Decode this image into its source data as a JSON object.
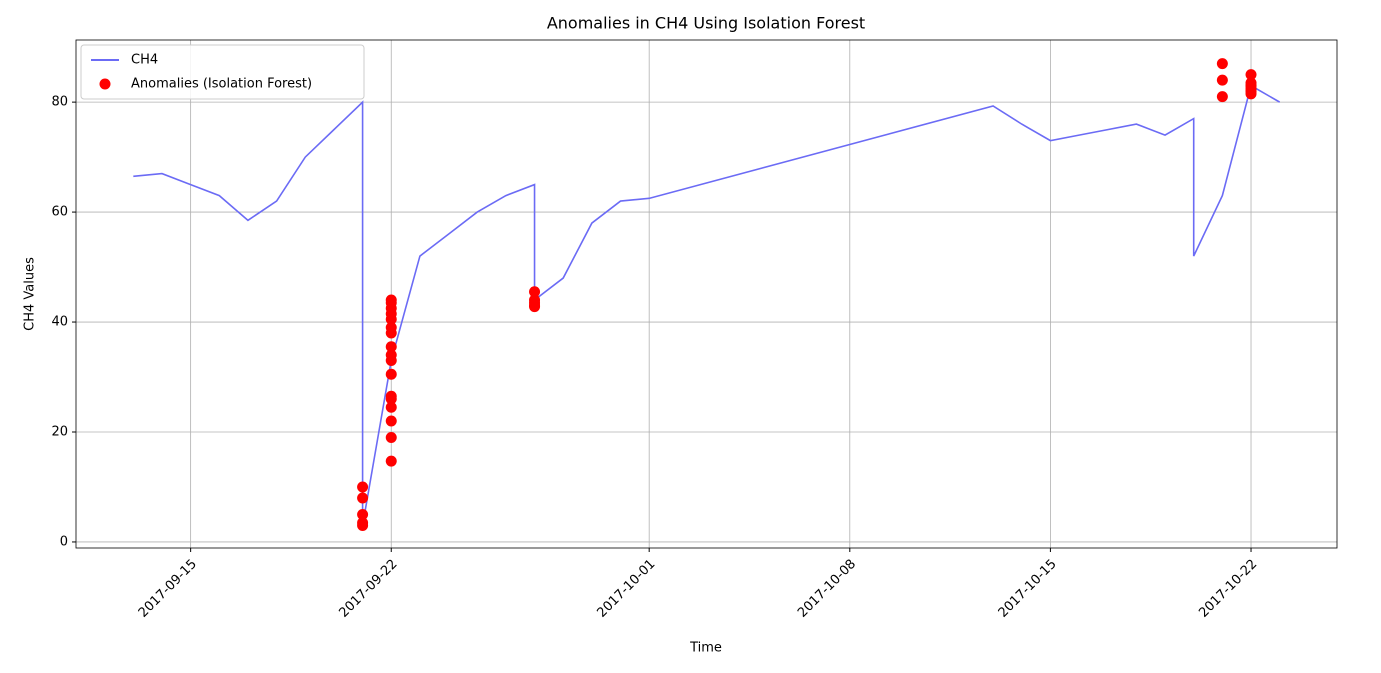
{
  "chart_data": {
    "type": "line",
    "title": "Anomalies in CH4 Using Isolation Forest",
    "x_label": "Time",
    "y_label": "CH4 Values",
    "xlim": [
      "2017-09-11",
      "2017-10-25"
    ],
    "xticks": [
      "2017-09-15",
      "2017-09-22",
      "2017-10-01",
      "2017-10-08",
      "2017-10-15",
      "2017-10-22"
    ],
    "ylim": [
      -1.1,
      91.3
    ],
    "yticks": [
      0,
      20,
      40,
      60,
      80
    ],
    "grid": true,
    "legend": "upper left",
    "series": [
      {
        "name": "CH4",
        "type": "line",
        "color": "#6b6bf5",
        "x": [
          "2017-09-13",
          "2017-09-14",
          "2017-09-15",
          "2017-09-16",
          "2017-09-17",
          "2017-09-18",
          "2017-09-19",
          "2017-09-20",
          "2017-09-21",
          "2017-09-21",
          "2017-09-22",
          "2017-09-23",
          "2017-09-24",
          "2017-09-25",
          "2017-09-26",
          "2017-09-27",
          "2017-09-27",
          "2017-09-28",
          "2017-09-29",
          "2017-09-30",
          "2017-10-01",
          "2017-10-13",
          "2017-10-14",
          "2017-10-15",
          "2017-10-16",
          "2017-10-17",
          "2017-10-18",
          "2017-10-19",
          "2017-10-20",
          "2017-10-20",
          "2017-10-21",
          "2017-10-22",
          "2017-10-23"
        ],
        "values": [
          66.5,
          67,
          65,
          63,
          58.5,
          62,
          70,
          75,
          80,
          3,
          33,
          52,
          56,
          60,
          63,
          65,
          44,
          48,
          58,
          62,
          62.5,
          79.3,
          76,
          73,
          74,
          75,
          76,
          74,
          77,
          52,
          63,
          83,
          80
        ]
      },
      {
        "name": "Anomalies (Isolation Forest)",
        "type": "scatter",
        "color": "#ff0000",
        "x": [
          "2017-09-21",
          "2017-09-21",
          "2017-09-21",
          "2017-09-21",
          "2017-09-21",
          "2017-09-22",
          "2017-09-22",
          "2017-09-22",
          "2017-09-22",
          "2017-09-22",
          "2017-09-22",
          "2017-09-22",
          "2017-09-22",
          "2017-09-22",
          "2017-09-22",
          "2017-09-22",
          "2017-09-22",
          "2017-09-22",
          "2017-09-22",
          "2017-09-22",
          "2017-09-22",
          "2017-09-22",
          "2017-09-27",
          "2017-09-27",
          "2017-09-27",
          "2017-09-27",
          "2017-09-27",
          "2017-10-21",
          "2017-10-21",
          "2017-10-21",
          "2017-10-22",
          "2017-10-22",
          "2017-10-22",
          "2017-10-22",
          "2017-10-22",
          "2017-10-22",
          "2017-10-22",
          "2017-10-22"
        ],
        "values": [
          3.5,
          3,
          8,
          5,
          10,
          14.7,
          19,
          22,
          24.5,
          26,
          26.5,
          30.5,
          33,
          34,
          35.5,
          38,
          39,
          40.5,
          41.5,
          42.5,
          43.5,
          44,
          43.5,
          43,
          42.8,
          44,
          45.5,
          81,
          84,
          87,
          85,
          83,
          83.5,
          83,
          82.5,
          82,
          81.5,
          82
        ]
      }
    ]
  }
}
